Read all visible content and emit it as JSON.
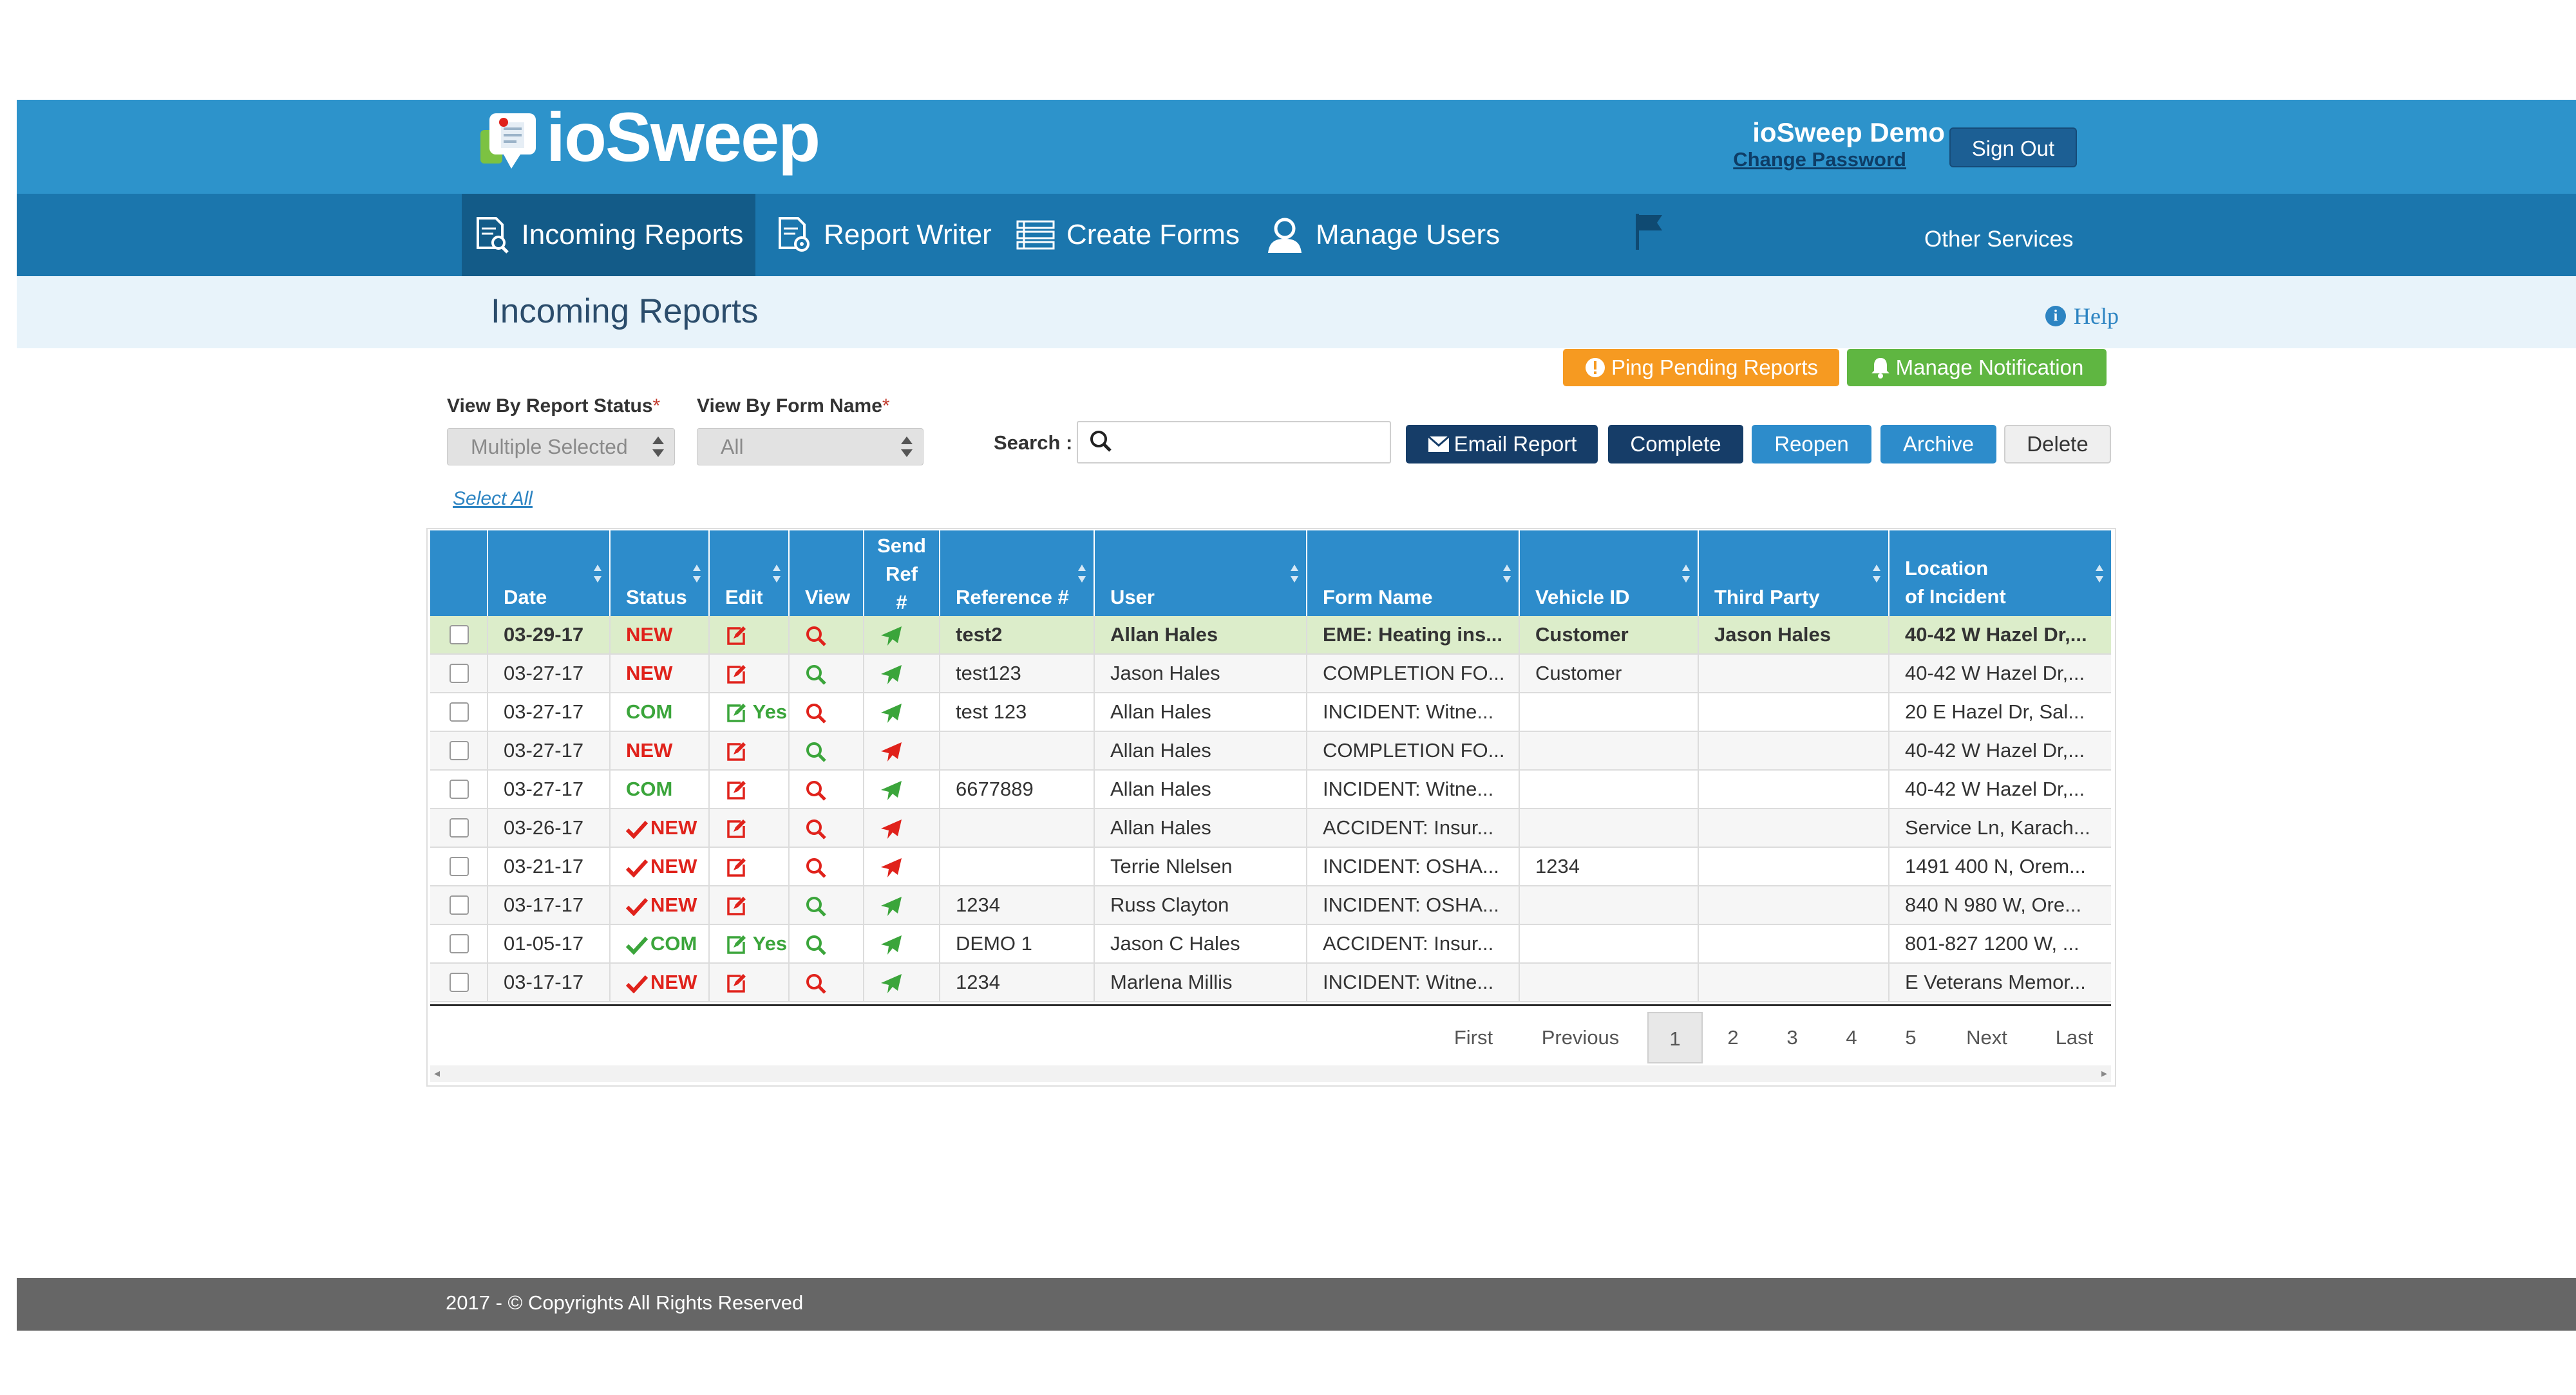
{
  "app": {
    "name": "ioSweep",
    "user_display": "ioSweep Demo",
    "change_password": "Change Password",
    "sign_out": "Sign Out"
  },
  "nav": {
    "items": [
      {
        "label": "Incoming Reports",
        "icon": "report-search-icon",
        "active": true
      },
      {
        "label": "Report Writer",
        "icon": "report-edit-icon"
      },
      {
        "label": "Create Forms",
        "icon": "forms-list-icon"
      },
      {
        "label": "Manage Users",
        "icon": "user-icon"
      }
    ],
    "flag_icon": "flag-icon",
    "other_services": "Other Services"
  },
  "page": {
    "title": "Incoming Reports",
    "help": "Help"
  },
  "actions_top": {
    "ping": "Ping Pending Reports",
    "manage_notification": "Manage Notification"
  },
  "filters": {
    "status_label": "View By Report Status",
    "status_value": "Multiple Selected",
    "form_label": "View By Form Name",
    "form_value": "All",
    "required_mark": "*",
    "search_label": "Search :",
    "search_value": ""
  },
  "actions": {
    "email_report": "Email Report",
    "complete": "Complete",
    "reopen": "Reopen",
    "archive": "Archive",
    "delete": "Delete"
  },
  "select_all": "Select All",
  "table": {
    "headers": {
      "date": "Date",
      "status": "Status",
      "edit": "Edit",
      "view": "View",
      "send_ref_1": "Send",
      "send_ref_2": "Ref",
      "send_ref_3": "#",
      "reference": "Reference #",
      "user": "User",
      "form_name": "Form Name",
      "vehicle_id": "Vehicle ID",
      "third_party": "Third Party",
      "location_1": "Location",
      "location_2": "of Incident"
    },
    "rows": [
      {
        "date": "03-29-17",
        "status": "NEW",
        "status_check": false,
        "edit_yes": "",
        "send_color": "#3ba53b",
        "view_color": "#e0221b",
        "reference": "test2",
        "user": "Allan Hales",
        "form_name": "EME: Heating ins...",
        "vehicle_id": "Customer",
        "third_party": "Jason Hales",
        "location": "40-42 W Hazel Dr,..."
      },
      {
        "date": "03-27-17",
        "status": "NEW",
        "status_check": false,
        "edit_yes": "",
        "send_color": "#3ba53b",
        "view_color": "#3ba53b",
        "reference": "test123",
        "user": "Jason Hales",
        "form_name": "COMPLETION FO...",
        "vehicle_id": "Customer",
        "third_party": "",
        "location": "40-42 W Hazel Dr,..."
      },
      {
        "date": "03-27-17",
        "status": "COM",
        "status_check": false,
        "edit_yes": "Yes",
        "send_color": "#3ba53b",
        "view_color": "#e0221b",
        "reference": "test 123",
        "user": "Allan Hales",
        "form_name": "INCIDENT: Witne...",
        "vehicle_id": "",
        "third_party": "",
        "location": "20 E Hazel Dr, Sal..."
      },
      {
        "date": "03-27-17",
        "status": "NEW",
        "status_check": false,
        "edit_yes": "",
        "send_color": "#e0221b",
        "view_color": "#3ba53b",
        "reference": "",
        "user": "Allan Hales",
        "form_name": "COMPLETION FO...",
        "vehicle_id": "",
        "third_party": "",
        "location": "40-42 W Hazel Dr,..."
      },
      {
        "date": "03-27-17",
        "status": "COM",
        "status_check": false,
        "edit_yes": "",
        "send_color": "#3ba53b",
        "view_color": "#e0221b",
        "reference": "6677889",
        "user": "Allan Hales",
        "form_name": "INCIDENT: Witne...",
        "vehicle_id": "",
        "third_party": "",
        "location": "40-42 W Hazel Dr,..."
      },
      {
        "date": "03-26-17",
        "status": "NEW",
        "status_check": true,
        "edit_yes": "",
        "send_color": "#e0221b",
        "view_color": "#e0221b",
        "reference": "",
        "user": "Allan Hales",
        "form_name": "ACCIDENT: Insur...",
        "vehicle_id": "",
        "third_party": "",
        "location": "Service Ln, Karach..."
      },
      {
        "date": "03-21-17",
        "status": "NEW",
        "status_check": true,
        "edit_yes": "",
        "send_color": "#e0221b",
        "view_color": "#e0221b",
        "reference": "",
        "user": "Terrie Nlelsen",
        "form_name": "INCIDENT: OSHA...",
        "vehicle_id": "1234",
        "third_party": "",
        "location": "1491 400 N, Orem..."
      },
      {
        "date": "03-17-17",
        "status": "NEW",
        "status_check": true,
        "edit_yes": "",
        "send_color": "#3ba53b",
        "view_color": "#3ba53b",
        "reference": "1234",
        "user": "Russ Clayton",
        "form_name": "INCIDENT: OSHA...",
        "vehicle_id": "",
        "third_party": "",
        "location": "840 N 980 W, Ore..."
      },
      {
        "date": "01-05-17",
        "status": "COM",
        "status_check": true,
        "edit_yes": "Yes",
        "send_color": "#3ba53b",
        "view_color": "#3ba53b",
        "reference": "DEMO 1",
        "user": "Jason C Hales",
        "form_name": "ACCIDENT: Insur...",
        "vehicle_id": "",
        "third_party": "",
        "location": "801-827 1200 W, ..."
      },
      {
        "date": "03-17-17",
        "status": "NEW",
        "status_check": true,
        "edit_yes": "",
        "send_color": "#3ba53b",
        "view_color": "#e0221b",
        "reference": "1234",
        "user": "Marlena Millis",
        "form_name": "INCIDENT: Witne...",
        "vehicle_id": "",
        "third_party": "",
        "location": "E Veterans Memor..."
      }
    ]
  },
  "pagination": {
    "first": "First",
    "previous": "Previous",
    "pages": [
      "1",
      "2",
      "3",
      "4",
      "5"
    ],
    "current": "1",
    "next": "Next",
    "last": "Last"
  },
  "footer": {
    "text": "2017 - © Copyrights All Rights Reserved"
  },
  "colors": {
    "header": "#2d93cb",
    "nav": "#1b76ad",
    "nav_active": "#135b88",
    "new": "#e0221b",
    "com": "#3ba53b",
    "ping": "#f69a21",
    "notif": "#5fb641"
  }
}
